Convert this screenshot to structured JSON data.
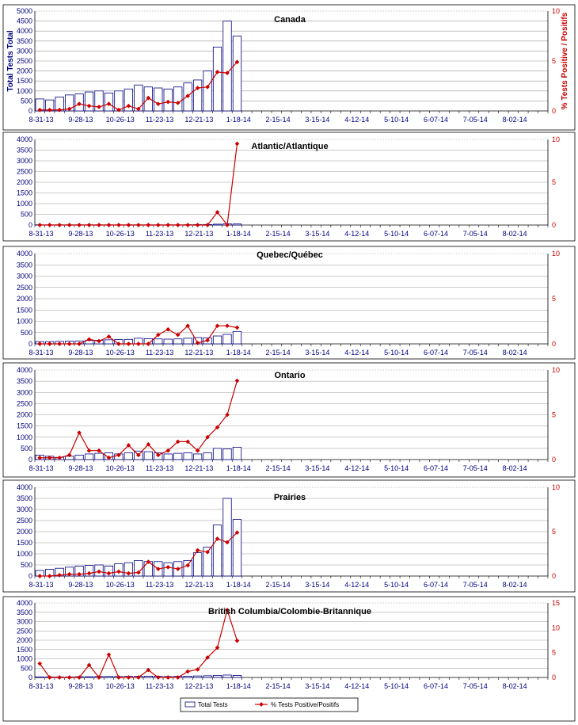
{
  "colors": {
    "bar_fill": "#ffffff",
    "bar_stroke": "#000080",
    "line": "#cc0000",
    "left_axis_text": "#000080",
    "right_axis_text": "#cc0000",
    "grid": "#999999"
  },
  "legend": {
    "bars_label": "Total Tests",
    "line_label": "% Tests Positive/Positifs"
  },
  "chart_data": [
    {
      "type": "bar+line",
      "title": "Canada",
      "ylabel": "Total Tests Total",
      "y2label": "% Tests Positive / Positifs",
      "ylim": [
        0,
        5000
      ],
      "yticks": [
        "0",
        "500",
        "1000",
        "1500",
        "2000",
        "2500",
        "3000",
        "3500",
        "4000",
        "4500",
        "5000"
      ],
      "y2lim": [
        0,
        10
      ],
      "y2ticks": [
        "0",
        "5",
        "10"
      ],
      "x_tick_labels": [
        "8-31-13",
        "9-28-13",
        "10-26-13",
        "11-23-13",
        "12-21-13",
        "1-18-14",
        "2-15-14",
        "3-15-14",
        "4-12-14",
        "5-10-14",
        "6-07-14",
        "7-05-14",
        "8-02-14"
      ],
      "bars": [
        600,
        550,
        700,
        800,
        850,
        950,
        1000,
        900,
        1000,
        1100,
        1300,
        1200,
        1150,
        1100,
        1200,
        1400,
        1550,
        2000,
        3200,
        4500,
        3750
      ],
      "line": [
        0.1,
        0.1,
        0.1,
        0.2,
        0.7,
        0.5,
        0.4,
        0.7,
        0.1,
        0.5,
        0.2,
        1.3,
        0.7,
        0.9,
        0.8,
        1.5,
        2.3,
        2.4,
        3.9,
        3.8,
        4.9
      ]
    },
    {
      "type": "bar+line",
      "title": "Atlantic/Atlantique",
      "ylim": [
        0,
        4000
      ],
      "yticks": [
        "0",
        "500",
        "1000",
        "1500",
        "2000",
        "2500",
        "3000",
        "3500",
        "4000"
      ],
      "y2lim": [
        0,
        10
      ],
      "y2ticks": [
        "0",
        "5",
        "10"
      ],
      "x_tick_labels": [
        "8-31-13",
        "9-28-13",
        "10-26-13",
        "11-23-13",
        "12-21-13",
        "1-18-14",
        "2-15-14",
        "3-15-14",
        "4-12-14",
        "5-10-14",
        "6-07-14",
        "7-05-14",
        "8-02-14"
      ],
      "bars": [
        10,
        10,
        10,
        10,
        10,
        10,
        10,
        10,
        10,
        10,
        10,
        10,
        10,
        10,
        10,
        15,
        20,
        25,
        40,
        60,
        50
      ],
      "line": [
        0,
        0,
        0,
        0,
        0,
        0,
        0,
        0,
        0,
        0,
        0,
        0,
        0,
        0,
        0,
        0,
        0,
        0,
        1.5,
        0,
        9.5
      ]
    },
    {
      "type": "bar+line",
      "title": "Quebec/Québec",
      "ylim": [
        0,
        4000
      ],
      "yticks": [
        "0",
        "500",
        "1000",
        "1500",
        "2000",
        "2500",
        "3000",
        "3500",
        "4000"
      ],
      "y2lim": [
        0,
        10
      ],
      "y2ticks": [
        "0",
        "5",
        "10"
      ],
      "x_tick_labels": [
        "8-31-13",
        "9-28-13",
        "10-26-13",
        "11-23-13",
        "12-21-13",
        "1-18-14",
        "2-15-14",
        "3-15-14",
        "4-12-14",
        "5-10-14",
        "6-07-14",
        "7-05-14",
        "8-02-14"
      ],
      "bars": [
        100,
        100,
        110,
        120,
        130,
        150,
        160,
        180,
        190,
        200,
        250,
        230,
        220,
        210,
        220,
        250,
        280,
        270,
        350,
        420,
        550
      ],
      "line": [
        0,
        0,
        0,
        0,
        0,
        0.5,
        0.3,
        0.8,
        0,
        0,
        0,
        0,
        1,
        1.6,
        1,
        2,
        0.1,
        0.4,
        2,
        2,
        1.8
      ]
    },
    {
      "type": "bar+line",
      "title": "Ontario",
      "ylim": [
        0,
        4000
      ],
      "yticks": [
        "0",
        "500",
        "1000",
        "1500",
        "2000",
        "2500",
        "3000",
        "3500",
        "4000"
      ],
      "y2lim": [
        0,
        10
      ],
      "y2ticks": [
        "0",
        "5",
        "10"
      ],
      "x_tick_labels": [
        "8-31-13",
        "9-28-13",
        "10-26-13",
        "11-23-13",
        "12-21-13",
        "1-18-14",
        "2-15-14",
        "3-15-14",
        "4-12-14",
        "5-10-14",
        "6-07-14",
        "7-05-14",
        "8-02-14"
      ],
      "bars": [
        200,
        150,
        100,
        150,
        200,
        250,
        280,
        300,
        250,
        300,
        380,
        350,
        300,
        250,
        280,
        300,
        250,
        300,
        500,
        480,
        550
      ],
      "line": [
        0.2,
        0.2,
        0.2,
        0.5,
        3,
        1,
        1,
        0.2,
        0.5,
        1.6,
        0.5,
        1.7,
        0.5,
        1,
        2,
        2,
        1,
        2.5,
        3.6,
        5,
        8.8
      ]
    },
    {
      "type": "bar+line",
      "title": "Prairies",
      "ylim": [
        0,
        4000
      ],
      "yticks": [
        "0",
        "500",
        "1000",
        "1500",
        "2000",
        "2500",
        "3000",
        "3500",
        "4000"
      ],
      "y2lim": [
        0,
        10
      ],
      "y2ticks": [
        "0",
        "5",
        "10"
      ],
      "x_tick_labels": [
        "8-31-13",
        "9-28-13",
        "10-26-13",
        "11-23-13",
        "12-21-13",
        "1-18-14",
        "2-15-14",
        "3-15-14",
        "4-12-14",
        "5-10-14",
        "6-07-14",
        "7-05-14",
        "8-02-14"
      ],
      "bars": [
        250,
        300,
        350,
        400,
        450,
        480,
        500,
        450,
        550,
        600,
        700,
        650,
        650,
        600,
        650,
        700,
        1050,
        1300,
        2300,
        3500,
        2550
      ],
      "line": [
        0,
        0,
        0.1,
        0.2,
        0.2,
        0.3,
        0.5,
        0.3,
        0.5,
        0.3,
        0.4,
        1.6,
        0.8,
        1,
        0.8,
        1.2,
        2.9,
        2.7,
        4.2,
        3.8,
        4.9
      ]
    },
    {
      "type": "bar+line",
      "title": "British Columbia/Colombie-Britannique",
      "ylim": [
        0,
        4000
      ],
      "yticks": [
        "0",
        "500",
        "1000",
        "1500",
        "2000",
        "2500",
        "3000",
        "3500",
        "4000"
      ],
      "y2lim": [
        0,
        15
      ],
      "y2ticks": [
        "0",
        "5",
        "10",
        "15"
      ],
      "x_tick_labels": [
        "8-31-13",
        "9-28-13",
        "10-26-13",
        "11-23-13",
        "12-21-13",
        "1-18-14",
        "2-15-14",
        "3-15-14",
        "4-12-14",
        "5-10-14",
        "6-07-14",
        "7-05-14",
        "8-02-14"
      ],
      "bars": [
        30,
        30,
        30,
        30,
        40,
        40,
        50,
        50,
        50,
        60,
        60,
        70,
        60,
        50,
        60,
        70,
        80,
        90,
        110,
        130,
        110
      ],
      "line": [
        2.8,
        0,
        0,
        0,
        0,
        2.5,
        0,
        4.6,
        0,
        0,
        0,
        1.5,
        0,
        0,
        0,
        1.2,
        1.6,
        4,
        6,
        13.6,
        7.4
      ]
    }
  ]
}
